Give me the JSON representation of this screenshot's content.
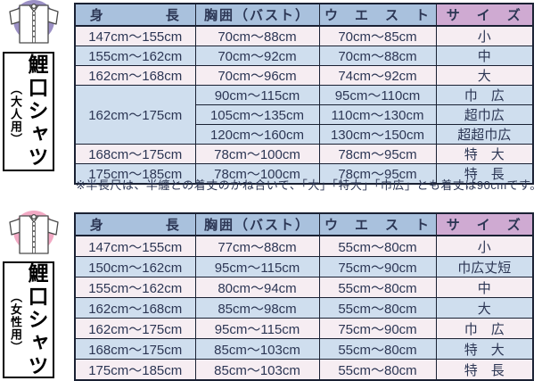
{
  "colors": {
    "header-blue": "#a9c1dd",
    "header-purple": "#cfaad2",
    "row-pink": "#f6edf2",
    "row-blue": "#cfdeee",
    "border": "#1a2133",
    "text": "#2c3654",
    "adult-icon-circle": "#9b90c5",
    "women-icon-circle": "#f2a9c4"
  },
  "sections": [
    {
      "id": "adult",
      "icon": "koikuchi-shirt-icon",
      "icon_color": "#9b90c5",
      "label_main": "鯉口シャツ",
      "label_sub": "（大人用）",
      "table": {
        "headers": [
          "身　　　　長",
          "胸囲（バスト）",
          "ウ　エ　ス　ト",
          "サ　イ　ズ"
        ],
        "rows": [
          {
            "tone": "pink",
            "cells": [
              "147cm～155cm",
              "70cm～88cm",
              "70cm～85cm",
              "小"
            ]
          },
          {
            "tone": "blue",
            "cells": [
              "155cm～162cm",
              "70cm～92cm",
              "70cm～88cm",
              "中"
            ]
          },
          {
            "tone": "pink",
            "cells": [
              "162cm～168cm",
              "70cm～96cm",
              "74cm～92cm",
              "大"
            ]
          },
          {
            "tone": "blue",
            "cells": [
              {
                "text": "162cm～175cm",
                "rowspan": 3
              },
              "90cm～115cm",
              "95cm～110cm",
              "巾　広"
            ]
          },
          {
            "tone": "blue",
            "cells": [
              "105cm～135cm",
              "110cm～130cm",
              "超巾広"
            ]
          },
          {
            "tone": "blue",
            "cells": [
              "120cm～160cm",
              "130cm～150cm",
              "超超巾広"
            ]
          },
          {
            "tone": "pink",
            "cells": [
              "168cm～175cm",
              "78cm～100cm",
              "78cm～95cm",
              "特　大"
            ]
          },
          {
            "tone": "blue",
            "cells": [
              "175cm～185cm",
              "78cm～100cm",
              "78cm～95cm",
              "特　長"
            ]
          }
        ]
      },
      "note": "※半長尺は、半纏との着丈のかね合いで、「大」「特大」「巾広」とも着丈は90cmです。"
    },
    {
      "id": "women",
      "icon": "koikuchi-shirt-icon",
      "icon_color": "#f2a9c4",
      "label_main": "鯉口シャツ",
      "label_sub": "（女性用）",
      "table": {
        "headers": [
          "身　　　　長",
          "胸囲（バスト）",
          "ウ　エ　ス　ト",
          "サ　イ　ズ"
        ],
        "rows": [
          {
            "tone": "pink",
            "cells": [
              "147cm～155cm",
              "77cm～88cm",
              "55cm～80cm",
              "小"
            ]
          },
          {
            "tone": "blue",
            "cells": [
              "150cm～162cm",
              "95cm～115cm",
              "75cm～90cm",
              "巾広丈短"
            ]
          },
          {
            "tone": "pink",
            "cells": [
              "155cm～162cm",
              "80cm～94cm",
              "55cm～80cm",
              "中"
            ]
          },
          {
            "tone": "blue",
            "cells": [
              "162cm～168cm",
              "85cm～98cm",
              "55cm～80cm",
              "大"
            ]
          },
          {
            "tone": "pink",
            "cells": [
              "162cm～175cm",
              "95cm～115cm",
              "75cm～90cm",
              "巾　広"
            ]
          },
          {
            "tone": "blue",
            "cells": [
              "168cm～175cm",
              "85cm～103cm",
              "55cm～80cm",
              "特　大"
            ]
          },
          {
            "tone": "pink",
            "cells": [
              "175cm～185cm",
              "85cm～103cm",
              "55cm～80cm",
              "特　長"
            ]
          }
        ]
      }
    }
  ]
}
